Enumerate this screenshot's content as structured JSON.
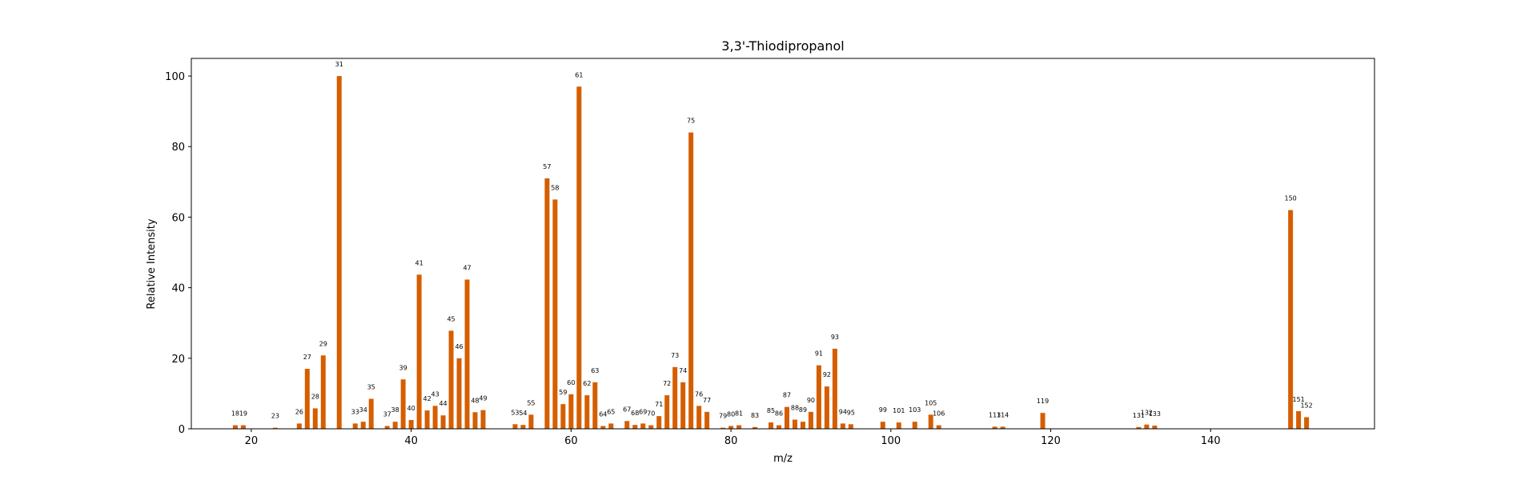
{
  "chart_data": {
    "type": "bar",
    "title": "3,3'-Thiodipropanol",
    "xlabel": "m/z",
    "ylabel": "Relative Intensity",
    "xlim": [
      12.5,
      160.5
    ],
    "ylim": [
      0,
      105
    ],
    "xticks": [
      20,
      40,
      60,
      80,
      100,
      120,
      140
    ],
    "yticks": [
      0,
      20,
      40,
      60,
      80,
      100
    ],
    "grid": false,
    "bar_color": "#d55e00",
    "x": [
      18,
      19,
      23,
      26,
      27,
      28,
      29,
      31,
      33,
      34,
      35,
      37,
      38,
      39,
      40,
      41,
      42,
      43,
      44,
      45,
      46,
      47,
      48,
      49,
      53,
      54,
      55,
      57,
      58,
      59,
      60,
      61,
      62,
      63,
      64,
      65,
      67,
      68,
      69,
      70,
      71,
      72,
      73,
      74,
      75,
      76,
      77,
      79,
      80,
      81,
      83,
      85,
      86,
      87,
      88,
      89,
      90,
      91,
      92,
      93,
      94,
      95,
      99,
      101,
      103,
      105,
      106,
      113,
      114,
      119,
      131,
      132,
      133,
      150,
      151,
      152
    ],
    "values": [
      1.0,
      1.0,
      0.3,
      1.5,
      17.0,
      5.8,
      20.8,
      100,
      1.5,
      2.0,
      8.5,
      0.8,
      2.0,
      14.0,
      2.5,
      43.7,
      5.2,
      6.5,
      3.8,
      27.8,
      20.0,
      42.3,
      4.7,
      5.3,
      1.3,
      1.1,
      4.0,
      71.0,
      65.0,
      7.0,
      9.8,
      97.0,
      9.5,
      13.2,
      0.8,
      1.5,
      2.2,
      1.1,
      1.5,
      1.0,
      3.6,
      9.5,
      17.5,
      13.2,
      84.0,
      6.5,
      4.8,
      0.3,
      0.8,
      1.0,
      0.5,
      1.8,
      1.0,
      6.2,
      2.6,
      2.0,
      4.8,
      18.0,
      12.0,
      22.7,
      1.5,
      1.3,
      2.0,
      1.8,
      2.0,
      4.0,
      1.0,
      0.6,
      0.6,
      4.5,
      0.5,
      1.2,
      0.9,
      62.0,
      5.0,
      3.3
    ],
    "labels": [
      "18",
      "19",
      "23",
      "26",
      "27",
      "28",
      "29",
      "31",
      "33",
      "34",
      "35",
      "37",
      "38",
      "39",
      "40",
      "41",
      "42",
      "43",
      "44",
      "45",
      "46",
      "47",
      "48",
      "49",
      "53",
      "54",
      "55",
      "57",
      "58",
      "59",
      "60",
      "61",
      "62",
      "63",
      "64",
      "65",
      "67",
      "68",
      "69",
      "70",
      "71",
      "72",
      "73",
      "74",
      "75",
      "76",
      "77",
      "79",
      "80",
      "81",
      "83",
      "85",
      "86",
      "87",
      "88",
      "89",
      "90",
      "91",
      "92",
      "93",
      "94",
      "95",
      "99",
      "101",
      "103",
      "105",
      "106",
      "113",
      "114",
      "119",
      "131",
      "132",
      "133",
      "150",
      "151",
      "152"
    ]
  }
}
